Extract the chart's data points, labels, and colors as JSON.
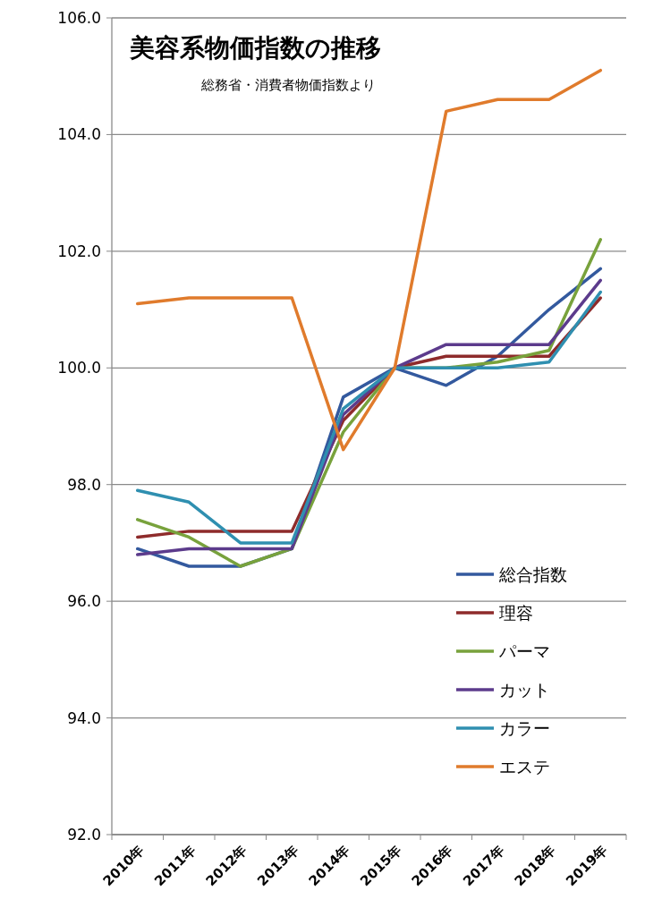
{
  "chart_data": {
    "type": "line",
    "title": "美容系物価指数の推移",
    "subtitle": "総務省・消費者物価指数より",
    "categories": [
      "2010年",
      "2011年",
      "2012年",
      "2013年",
      "2014年",
      "2015年",
      "2016年",
      "2017年",
      "2018年",
      "2019年"
    ],
    "series": [
      {
        "name": "総合指数",
        "color": "#33599e",
        "values": [
          96.9,
          96.6,
          96.6,
          96.9,
          99.5,
          100,
          99.7,
          100.2,
          101.0,
          101.7
        ]
      },
      {
        "name": "理容",
        "color": "#8e2b2b",
        "values": [
          97.1,
          97.2,
          97.2,
          97.2,
          99.1,
          100,
          100.2,
          100.2,
          100.2,
          101.2
        ]
      },
      {
        "name": "パーマ",
        "color": "#78a23c",
        "values": [
          97.4,
          97.1,
          96.6,
          96.9,
          98.9,
          100,
          100.0,
          100.1,
          100.3,
          102.2
        ]
      },
      {
        "name": "カット",
        "color": "#5c3b8c",
        "values": [
          96.8,
          96.9,
          96.9,
          96.9,
          99.2,
          100,
          100.4,
          100.4,
          100.4,
          101.5
        ]
      },
      {
        "name": "カラー",
        "color": "#2f8fb0",
        "values": [
          97.9,
          97.7,
          97.0,
          97.0,
          99.3,
          100,
          100.0,
          100.0,
          100.1,
          101.3
        ]
      },
      {
        "name": "エステ",
        "color": "#e07b2c",
        "values": [
          101.1,
          101.2,
          101.2,
          101.2,
          98.6,
          100,
          104.4,
          104.6,
          104.6,
          105.1
        ]
      }
    ],
    "ylim": [
      92,
      106
    ],
    "yticks": [
      {
        "value": 92,
        "label": "92.0"
      },
      {
        "value": 94,
        "label": "94.0"
      },
      {
        "value": 96,
        "label": "96.0"
      },
      {
        "value": 98,
        "label": "98.0"
      },
      {
        "value": 100,
        "label": "100.0"
      },
      {
        "value": 102,
        "label": "102.0"
      },
      {
        "value": 104,
        "label": "104.0"
      },
      {
        "value": 106,
        "label": "106.0"
      }
    ],
    "grid": "y",
    "legend": "bottom right",
    "marker": "none",
    "line_style": "solid"
  }
}
